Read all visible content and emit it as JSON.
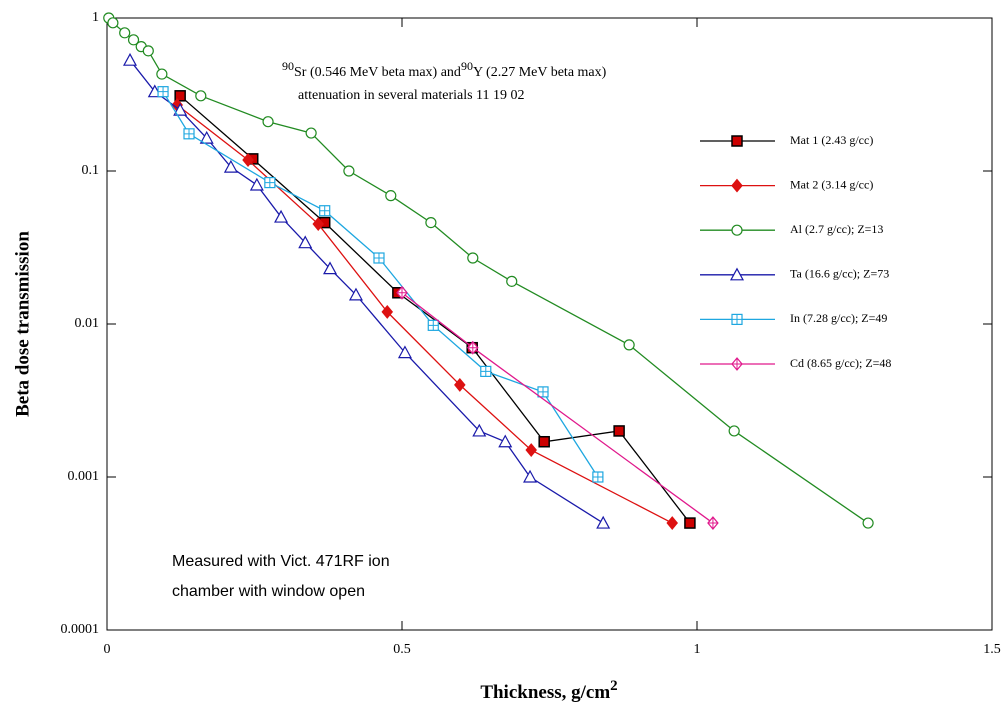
{
  "chart_data": {
    "type": "line",
    "annotation": {
      "line1": [
        "90",
        "Sr (0.546 MeV beta max) and",
        "90",
        "Y (2.27 MeV beta max)"
      ],
      "line2": "attenuation in several materials  11 19 02"
    },
    "note": [
      "Measured with Vict. 471RF ion",
      "chamber  with window open"
    ],
    "x_label": [
      "Thickness, g/cm",
      "2"
    ],
    "y_label": "Beta dose transmission",
    "xlim": [
      0,
      1.5
    ],
    "xticks": [
      0,
      0.5,
      1,
      1.5
    ],
    "ylim": [
      0.0001,
      1
    ],
    "yticks": [
      0.0001,
      0.001,
      0.01,
      0.1,
      1
    ],
    "y_log": true,
    "series": [
      {
        "name": "Mat 1 (2.43 g/cc)",
        "color": "#000000",
        "marker_color": "#cc0000",
        "marker": "square-filled",
        "x": [
          0.124,
          0.247,
          0.369,
          0.493,
          0.619,
          0.741,
          0.868,
          0.988
        ],
        "values": [
          0.31,
          0.12,
          0.046,
          0.016,
          0.007,
          0.0017,
          0.002,
          0.0005
        ]
      },
      {
        "name": "Mat 2 (3.14 g/cc)",
        "color": "#dd1111",
        "marker_color": "#dd1111",
        "marker": "diamond-filled",
        "x": [
          0.119,
          0.239,
          0.358,
          0.475,
          0.598,
          0.719,
          0.958
        ],
        "values": [
          0.27,
          0.118,
          0.045,
          0.012,
          0.004,
          0.0015,
          0.0005
        ]
      },
      {
        "name": "Al (2.7 g/cc); Z=13",
        "color": "#228b22",
        "marker_color": "#228b22",
        "marker": "circle",
        "x": [
          0.003,
          0.01,
          0.03,
          0.045,
          0.058,
          0.07,
          0.093,
          0.159,
          0.273,
          0.346,
          0.41,
          0.481,
          0.549,
          0.62,
          0.686,
          0.885,
          1.063,
          1.29
        ],
        "values": [
          1,
          0.93,
          0.8,
          0.72,
          0.65,
          0.61,
          0.43,
          0.31,
          0.21,
          0.177,
          0.1,
          0.069,
          0.046,
          0.027,
          0.019,
          0.0073,
          0.002,
          0.0005
        ]
      },
      {
        "name": "Ta (16.6 g/cc); Z=73",
        "color": "#1a1aaa",
        "marker_color": "#1a1aaa",
        "marker": "triangle",
        "x": [
          0.039,
          0.081,
          0.124,
          0.169,
          0.21,
          0.254,
          0.295,
          0.336,
          0.378,
          0.422,
          0.505,
          0.631,
          0.675,
          0.717,
          0.841
        ],
        "values": [
          0.53,
          0.33,
          0.25,
          0.164,
          0.106,
          0.081,
          0.05,
          0.034,
          0.023,
          0.0155,
          0.0065,
          0.002,
          0.0017,
          0.001,
          0.0005
        ]
      },
      {
        "name": "In (7.28 g/cc); Z=49",
        "color": "#1ea7e0",
        "marker_color": "#1ea7e0",
        "marker": "square-cross",
        "x": [
          0.095,
          0.139,
          0.276,
          0.369,
          0.461,
          0.553,
          0.642,
          0.739,
          0.832
        ],
        "values": [
          0.33,
          0.175,
          0.084,
          0.055,
          0.027,
          0.0098,
          0.0049,
          0.0036,
          0.001
        ]
      },
      {
        "name": "Cd (8.65 g/cc); Z=48",
        "color": "#e0198c",
        "marker_color": "#e0198c",
        "marker": "diamond-cross",
        "x": [
          0.5,
          0.62,
          1.027
        ],
        "values": [
          0.016,
          0.007,
          0.0005
        ]
      }
    ]
  }
}
